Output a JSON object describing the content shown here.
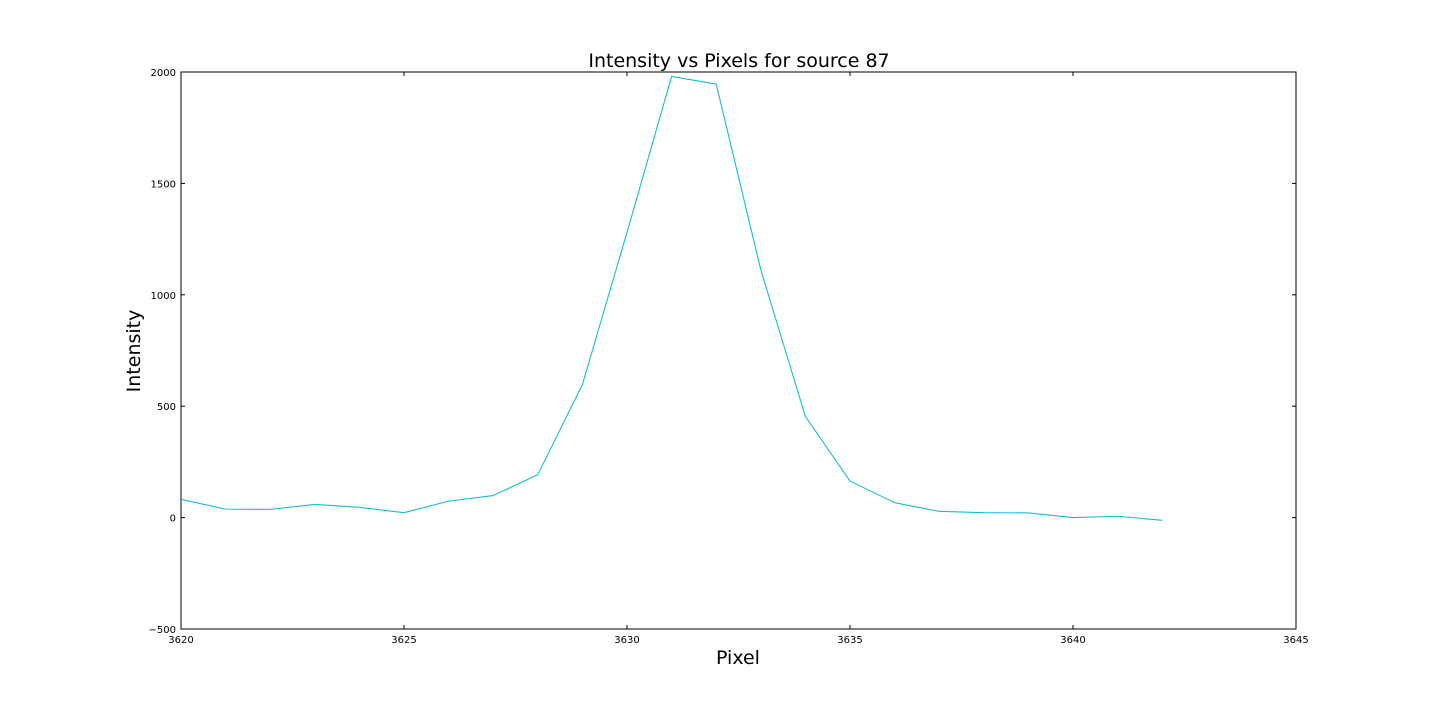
{
  "chart_data": {
    "type": "line",
    "title": "Intensity vs Pixels for source 87",
    "xlabel": "Pixel",
    "ylabel": "Intensity",
    "xlim": [
      3620,
      3645
    ],
    "ylim": [
      -500,
      2000
    ],
    "xticks": [
      "3620",
      "3625",
      "3630",
      "3635",
      "3640",
      "3645"
    ],
    "yticks": [
      "−500",
      "0",
      "500",
      "1000",
      "1500",
      "2000"
    ],
    "grid": false,
    "legend": "none",
    "series": [
      {
        "color": "#17becf",
        "x": [
          3620,
          3621,
          3622,
          3623,
          3624,
          3625,
          3626,
          3627,
          3628,
          3629,
          3630,
          3631,
          3632,
          3633,
          3634,
          3635,
          3636,
          3637,
          3638,
          3639,
          3640,
          3641,
          3642
        ],
        "y": [
          82,
          38,
          37,
          59,
          46,
          22,
          74,
          99,
          193,
          597,
          1280,
          1980,
          1946,
          1112,
          454,
          164,
          67,
          28,
          22,
          21,
          0,
          6,
          -12
        ]
      }
    ]
  }
}
